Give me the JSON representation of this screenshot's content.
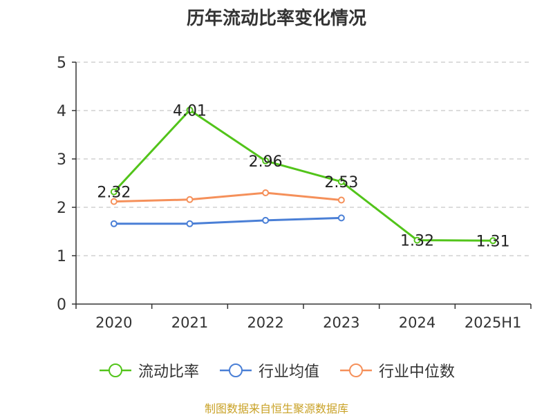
{
  "chart_data": {
    "type": "line",
    "title": "历年流动比率变化情况",
    "categories": [
      "2020",
      "2021",
      "2022",
      "2023",
      "2024",
      "2025H1"
    ],
    "y_ticks": [
      "0",
      "1",
      "2",
      "3",
      "4",
      "5"
    ],
    "ylim": [
      0,
      5
    ],
    "grid": true,
    "legend_position": "bottom",
    "series": [
      {
        "name": "流动比率",
        "color": "#52c41a",
        "values": [
          2.32,
          4.01,
          2.96,
          2.53,
          1.32,
          1.31
        ],
        "labels": [
          "2.32",
          "4.01",
          "2.96",
          "2.53",
          "1.32",
          "1.31"
        ]
      },
      {
        "name": "行业均值",
        "color": "#4a7fd6",
        "values": [
          1.66,
          1.66,
          1.73,
          1.78,
          null,
          null
        ]
      },
      {
        "name": "行业中位数",
        "color": "#f5905a",
        "values": [
          2.12,
          2.16,
          2.3,
          2.15,
          null,
          null
        ]
      }
    ]
  },
  "source": "制图数据来自恒生聚源数据库"
}
